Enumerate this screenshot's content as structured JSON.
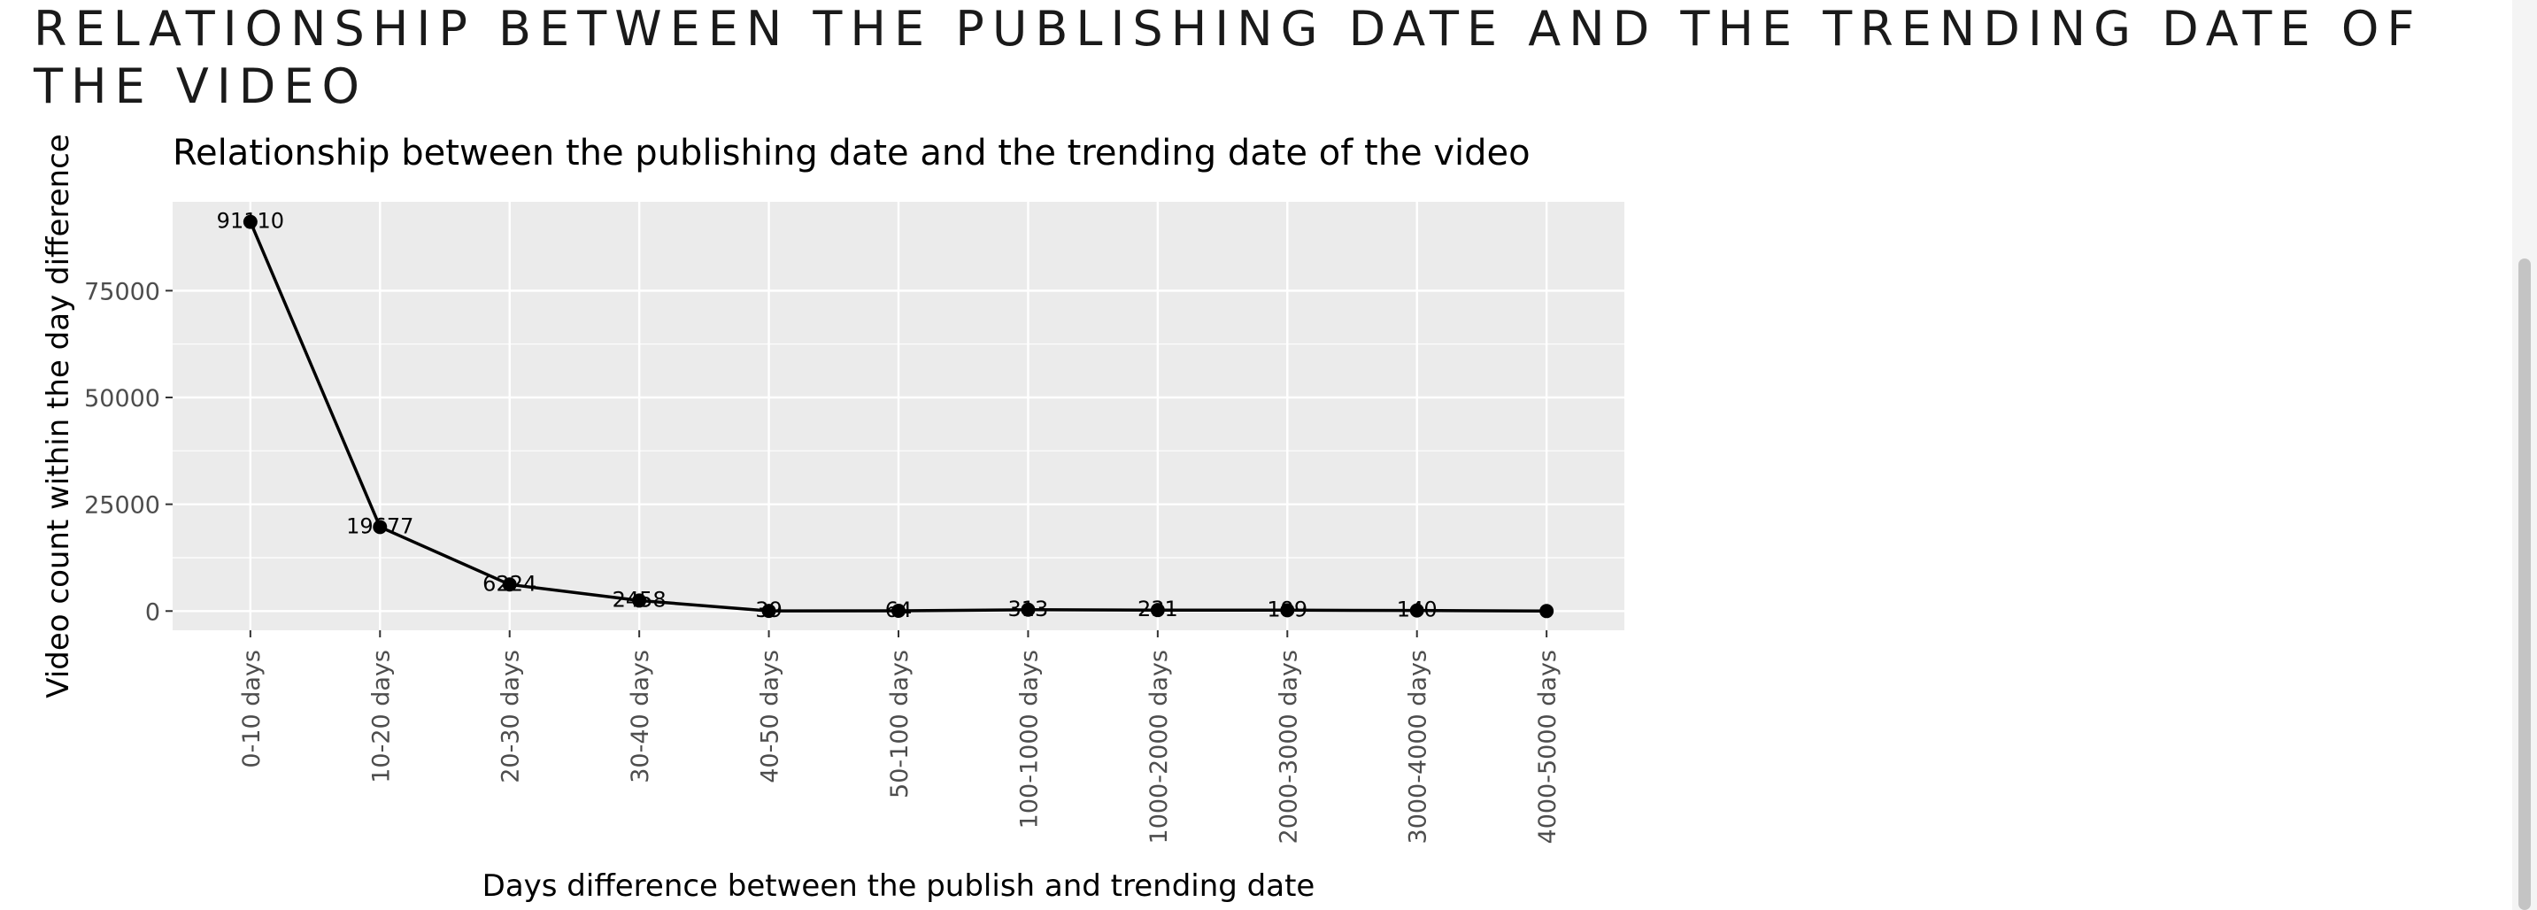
{
  "page": {
    "title": "Relationship between the publishing date and the trending date of the video"
  },
  "chart_data": {
    "type": "line",
    "title": "Relationship between the publishing date and the trending date of the video",
    "xlabel": "Days difference between the publish and trending date",
    "ylabel": "Video count within the day difference",
    "categories": [
      "0-10 days",
      "10-20 days",
      "20-30 days",
      "30-40 days",
      "40-50 days",
      "50-100 days",
      "100-1000 days",
      "1000-2000 days",
      "2000-3000 days",
      "3000-4000 days",
      "4000-5000 days"
    ],
    "values": [
      91110,
      19677,
      6224,
      2458,
      39,
      64,
      313,
      231,
      199,
      140,
      0
    ],
    "value_labels": [
      "91110",
      "19677",
      "6224",
      "2458",
      "39",
      "64",
      "313",
      "231",
      "199",
      "140",
      ""
    ],
    "yticks": [
      0,
      25000,
      50000,
      75000
    ],
    "ylim": [
      -4500,
      95800
    ],
    "grid": true,
    "legend": "none",
    "colors": {
      "line": "#000000",
      "panel": "#ebebeb",
      "grid": "#ffffff",
      "tick_text": "#4d4d4d"
    }
  }
}
